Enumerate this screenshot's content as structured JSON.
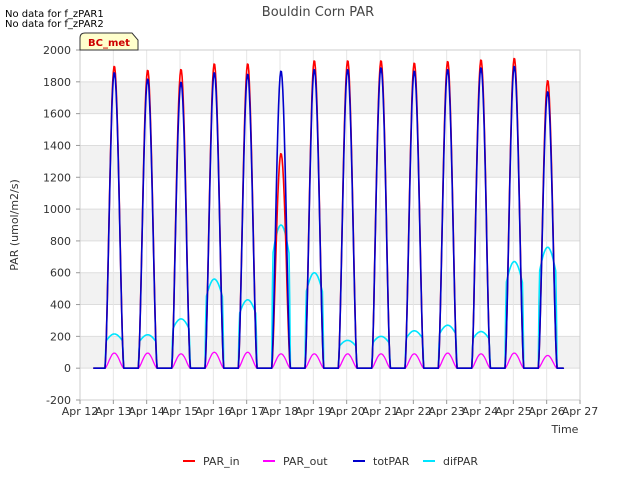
{
  "notes": [
    "No data for f_zPAR1",
    "No data for f_zPAR2"
  ],
  "chart_data": {
    "type": "line",
    "title": "Bouldin Corn PAR",
    "xlabel": "Time",
    "ylabel": "PAR (umol/m2/s)",
    "badge": "BC_met",
    "xlim": [
      12,
      27
    ],
    "ylim": [
      -200,
      2000
    ],
    "yticks": [
      -200,
      0,
      200,
      400,
      600,
      800,
      1000,
      1200,
      1400,
      1600,
      1800,
      2000
    ],
    "xticks": [
      12,
      13,
      14,
      15,
      16,
      17,
      18,
      19,
      20,
      21,
      22,
      23,
      24,
      25,
      26,
      27
    ],
    "xtick_labels": [
      "Apr 12",
      "Apr 13",
      "Apr 14",
      "Apr 15",
      "Apr 16",
      "Apr 17",
      "Apr 18",
      "Apr 19",
      "Apr 20",
      "Apr 21",
      "Apr 22",
      "Apr 23",
      "Apr 24",
      "Apr 25",
      "Apr 26",
      "Apr 27"
    ],
    "grid": true,
    "legend_position": "bottom",
    "series": [
      {
        "name": "PAR_in",
        "color": "#ff0000",
        "day_peaks": [
          1900,
          1875,
          1880,
          1915,
          1915,
          1350,
          1935,
          1935,
          1935,
          1920,
          1930,
          1940,
          1950,
          1810
        ]
      },
      {
        "name": "PAR_out",
        "color": "#ff00ff",
        "day_peaks": [
          95,
          95,
          90,
          100,
          100,
          90,
          90,
          90,
          90,
          90,
          95,
          90,
          95,
          80
        ]
      },
      {
        "name": "totPAR",
        "color": "#0000cc",
        "day_peaks": [
          1860,
          1820,
          1800,
          1860,
          1850,
          1870,
          1880,
          1880,
          1890,
          1870,
          1880,
          1890,
          1900,
          1740
        ]
      },
      {
        "name": "difPAR",
        "color": "#00e5ff",
        "day_peaks": [
          215,
          210,
          310,
          560,
          430,
          900,
          600,
          175,
          200,
          235,
          270,
          230,
          670,
          760
        ]
      }
    ]
  }
}
